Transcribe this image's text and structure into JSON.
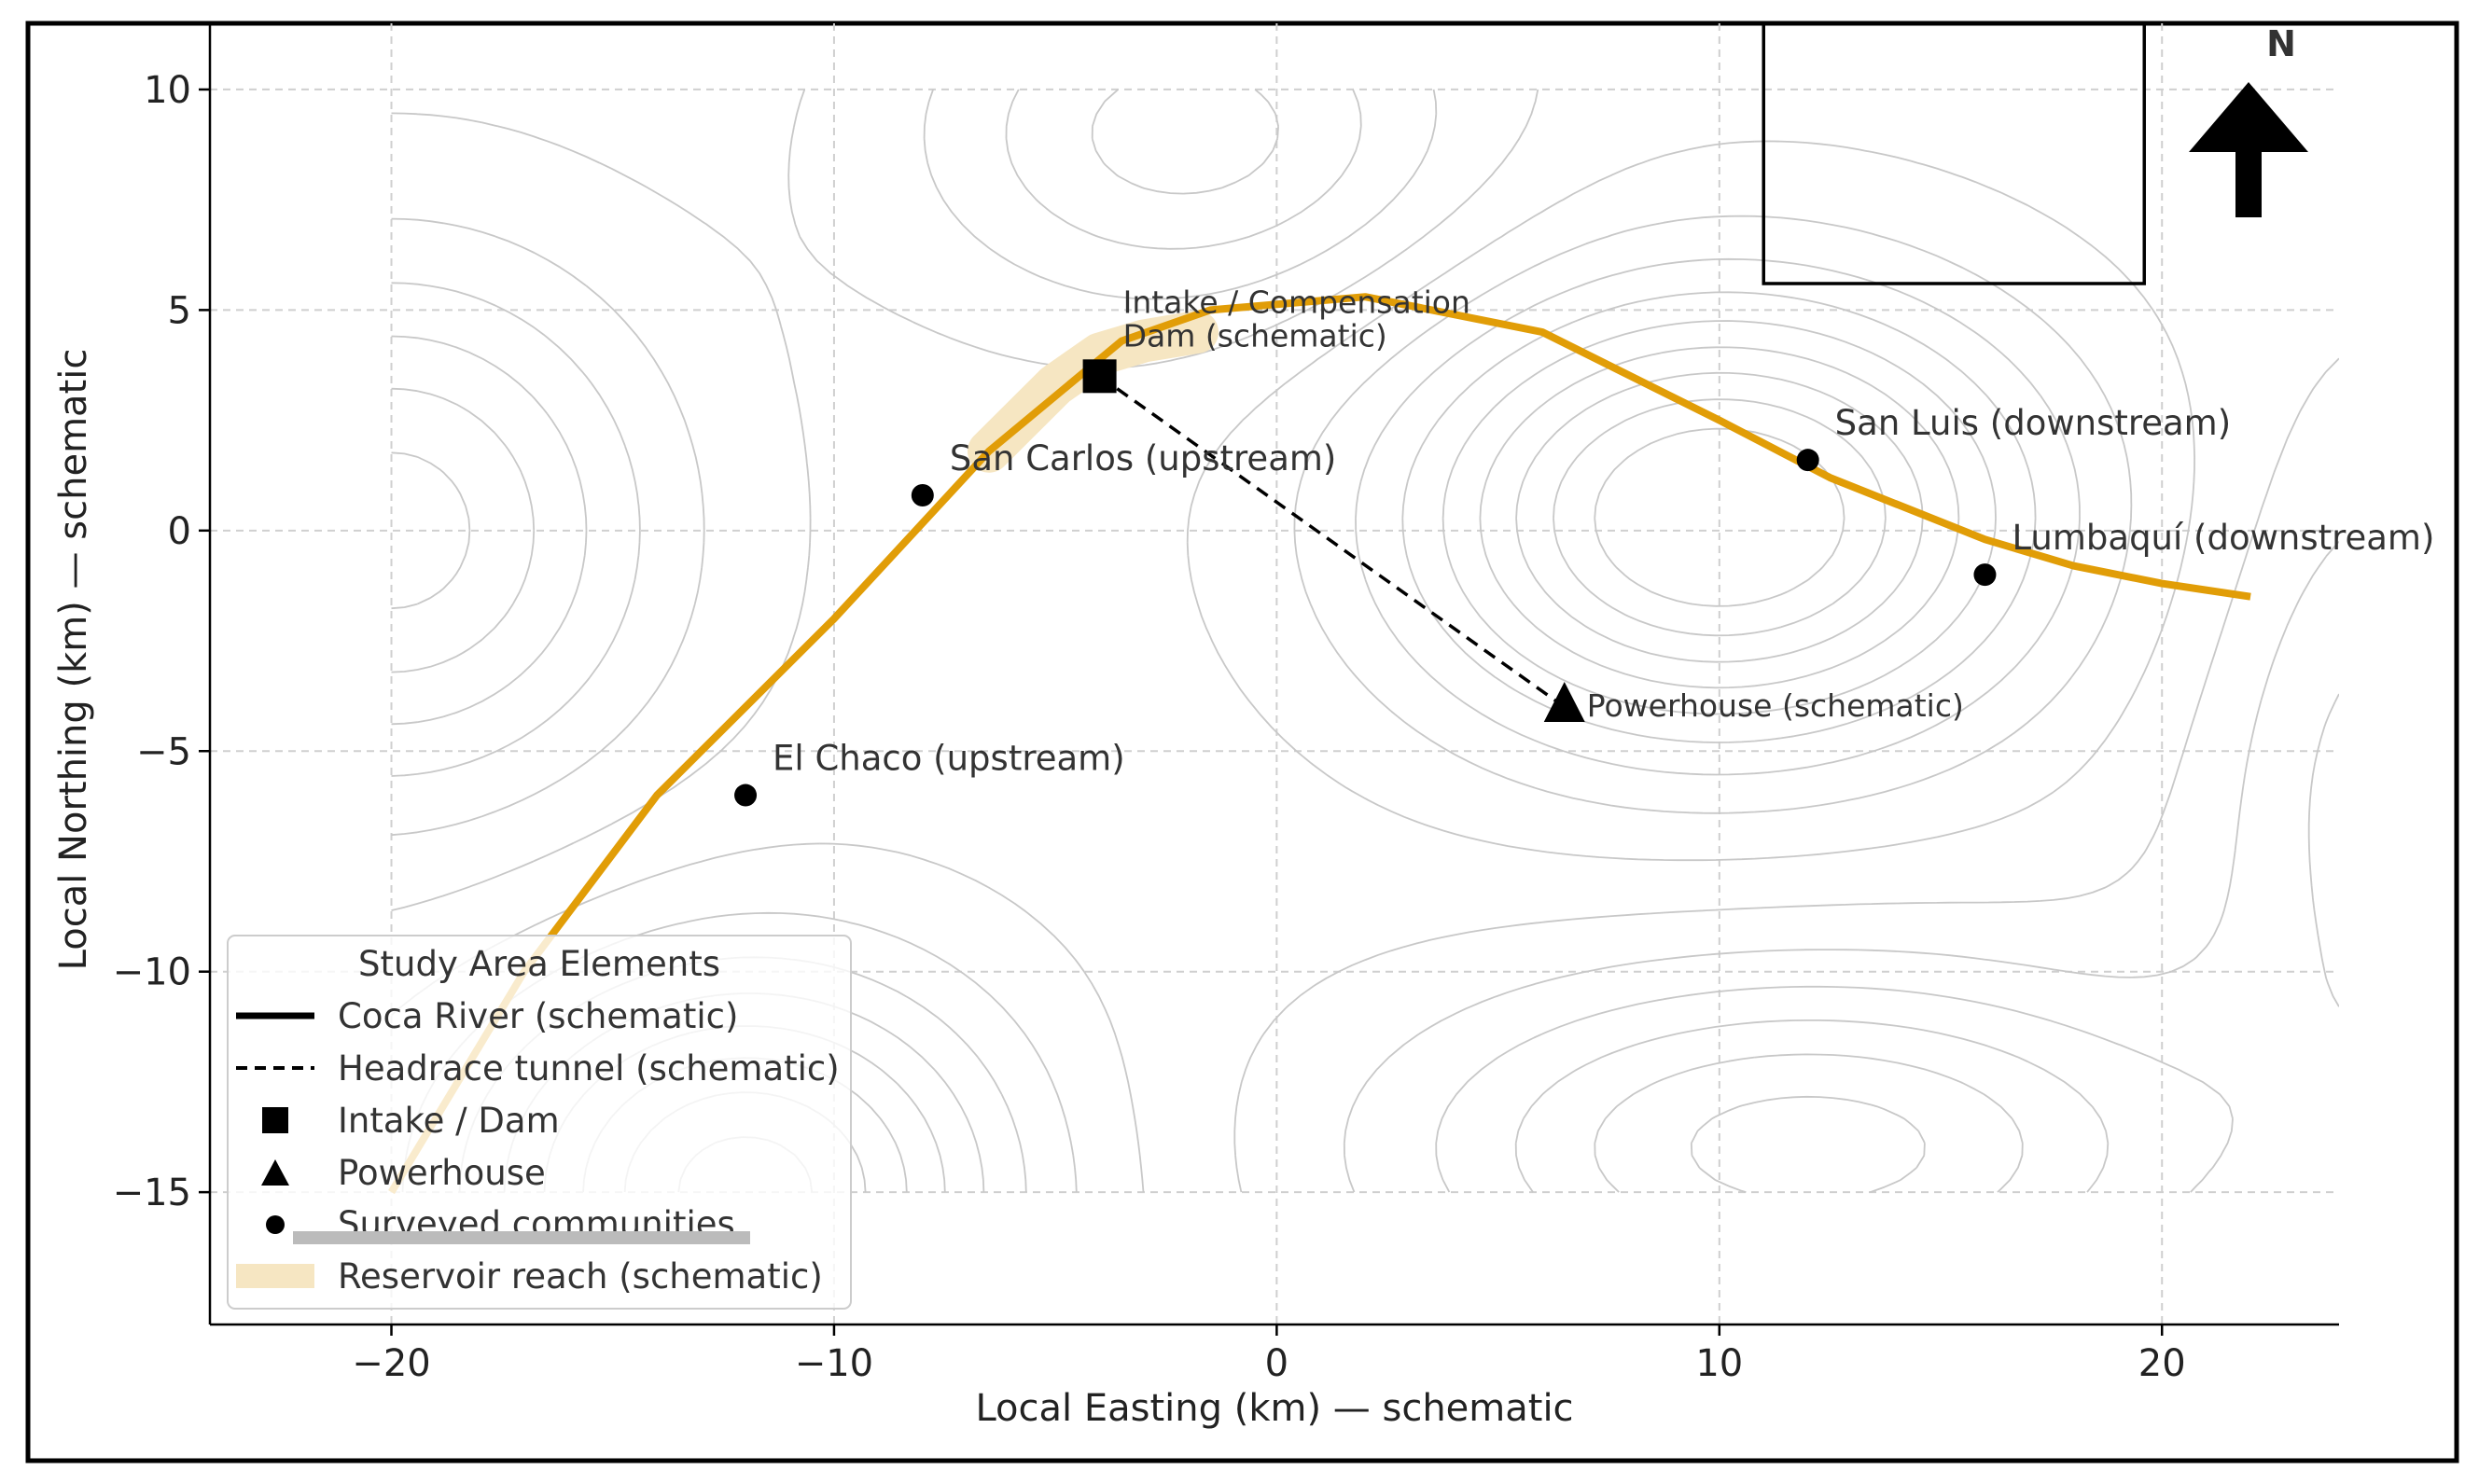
{
  "chart_data": {
    "type": "map",
    "xlabel": "Local Easting (km) — schematic",
    "ylabel": "Local Northing (km) — schematic",
    "xlim": [
      -24.1,
      24
    ],
    "ylim": [
      -18,
      11.5
    ],
    "xticks": [
      -20,
      -10,
      0,
      10,
      20
    ],
    "yticks": [
      -15,
      -10,
      -5,
      0,
      5,
      10
    ],
    "xtick_labels": [
      "−20",
      "−10",
      "0",
      "10",
      "20"
    ],
    "ytick_labels": [
      "−15",
      "−10",
      "−5",
      "0",
      "5",
      "10"
    ],
    "grid": true,
    "north_label": "N",
    "inset_box": {
      "x": [
        11,
        19.6
      ],
      "y": [
        5.6,
        11.5
      ]
    },
    "river": {
      "name": "Coca River (schematic)",
      "color": "#e19d07",
      "points": [
        [
          -20,
          -15
        ],
        [
          -17,
          -10
        ],
        [
          -14,
          -6
        ],
        [
          -10,
          -2
        ],
        [
          -6.5,
          1.8
        ],
        [
          -3.5,
          4.3
        ],
        [
          -1.5,
          5.0
        ],
        [
          2,
          5.3
        ],
        [
          6,
          4.5
        ],
        [
          10,
          2.5
        ],
        [
          12.5,
          1.2
        ],
        [
          16,
          -0.2
        ],
        [
          18,
          -0.8
        ],
        [
          20,
          -1.2
        ],
        [
          22,
          -1.5
        ]
      ]
    },
    "reservoir": {
      "name": "Reservoir reach (schematic)",
      "color": "#f6e6c2",
      "points": [
        [
          -6.5,
          1.8
        ],
        [
          -5,
          3.3
        ],
        [
          -4,
          4.0
        ],
        [
          -3,
          4.3
        ],
        [
          -1.8,
          4.5
        ]
      ]
    },
    "tunnel": {
      "name": "Headrace tunnel (schematic)",
      "from": [
        -4,
        3.5
      ],
      "to": [
        6.5,
        -4
      ]
    },
    "intake": {
      "x": -4,
      "y": 3.5,
      "label_line1": "Intake / Compensation",
      "label_line2": "Dam (schematic)"
    },
    "powerhouse": {
      "x": 6.5,
      "y": -4,
      "label": "Powerhouse (schematic)"
    },
    "communities": [
      {
        "name": "San Carlos (upstream)",
        "x": -8,
        "y": 0.8
      },
      {
        "name": "El Chaco (upstream)",
        "x": -12,
        "y": -6
      },
      {
        "name": "San Luis (downstream)",
        "x": 12,
        "y": 1.6
      },
      {
        "name": "Lumbaquí (downstream)",
        "x": 16,
        "y": -1
      }
    ],
    "legend": {
      "title": "Study Area Elements",
      "entries": [
        "Coca River (schematic)",
        "Headrace tunnel (schematic)",
        "Intake / Dam",
        "Powerhouse",
        "Surveyed communities",
        "Reservoir reach (schematic)"
      ]
    },
    "terrain": {
      "extent_x": [
        -20,
        24
      ],
      "extent_y": [
        -15,
        10
      ],
      "bumps": [
        {
          "x": 10,
          "y": 0.3,
          "amp": 1.0,
          "sx": 7,
          "sy": 5
        },
        {
          "x": -12,
          "y": -15,
          "amp": 0.8,
          "sx": 6,
          "sy": 5
        },
        {
          "x": -20,
          "y": 0,
          "amp": -0.6,
          "sx": 6,
          "sy": 6
        },
        {
          "x": 12,
          "y": -14,
          "amp": -0.6,
          "sx": 9,
          "sy": 4
        },
        {
          "x": -2,
          "y": 9,
          "amp": -0.4,
          "sx": 6,
          "sy": 4
        },
        {
          "x": 25,
          "y": -6,
          "amp": -0.3,
          "sx": 4,
          "sy": 8
        }
      ],
      "levels": [
        -0.55,
        -0.45,
        -0.35,
        -0.25,
        -0.15,
        -0.05,
        0.05,
        0.15,
        0.25,
        0.35,
        0.45,
        0.55,
        0.65,
        0.75,
        0.85
      ]
    }
  }
}
